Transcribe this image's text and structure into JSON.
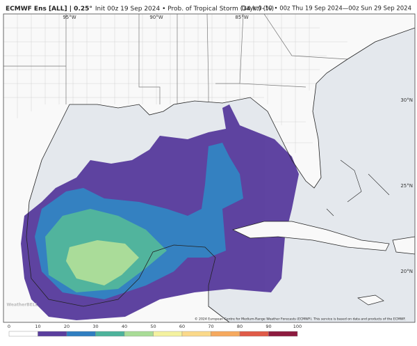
{
  "header": {
    "title_bold": "ECMWF Ens [ALL] | 0.25°",
    "title_rest": "Init 00z 19 Sep 2024 • Prob. of Tropical Storm (34 kt) (%)",
    "valid": "Days 0–10 • 00z Thu 19 Sep 2024—00z Sun 29 Sep 2024"
  },
  "map": {
    "lon_labels": [
      "95°W",
      "90°W",
      "85°W"
    ],
    "lat_labels": [
      "30°N",
      "25°N",
      "20°N"
    ],
    "watermark": "WeatherBELL",
    "copyright": "© 2024 European Centre for Medium-Range Weather Forecasts (ECMWF). This service is based on data and products of the ECMWF."
  },
  "colorbar": {
    "ticks": [
      0,
      10,
      20,
      30,
      40,
      50,
      60,
      70,
      80,
      90,
      100
    ],
    "colors": [
      "#ffffff",
      "#5a3e9e",
      "#2f7ec0",
      "#4db39b",
      "#a9dc97",
      "#f4f2a0",
      "#fbd98a",
      "#f6a95e",
      "#e05a48",
      "#8d1a3f"
    ]
  }
}
